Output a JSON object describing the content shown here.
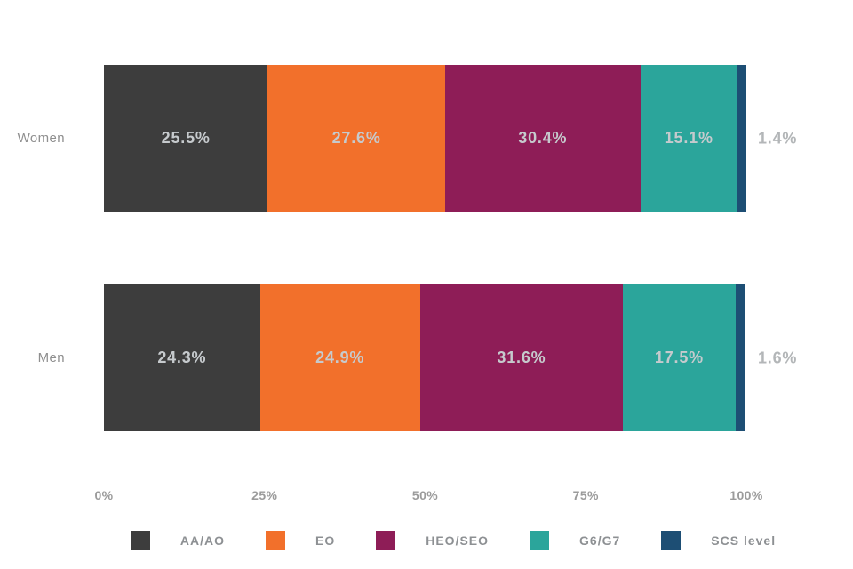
{
  "chart_data": {
    "type": "bar",
    "variant": "horizontal-stacked",
    "title": "",
    "xlabel": "",
    "ylabel": "",
    "x_axis": {
      "ticks": [
        "0%",
        "25%",
        "50%",
        "75%",
        "100%"
      ],
      "tick_positions": [
        0,
        25,
        50,
        75,
        100
      ],
      "range": [
        0,
        100
      ],
      "grid": false
    },
    "legend": {
      "position": "bottom",
      "items": [
        {
          "label": "AA/AO",
          "color": "#3d3d3d"
        },
        {
          "label": "EO",
          "color": "#f2702b"
        },
        {
          "label": "HEO/SEO",
          "color": "#8e1d57"
        },
        {
          "label": "G6/G7",
          "color": "#2ba59b"
        },
        {
          "label": "SCS level",
          "color": "#1d4e74"
        }
      ]
    },
    "rows": [
      {
        "label": "Women",
        "segments": [
          {
            "series": "AA/AO",
            "value": 25.5,
            "label": "25.5%",
            "label_inside": true
          },
          {
            "series": "EO",
            "value": 27.6,
            "label": "27.6%",
            "label_inside": true
          },
          {
            "series": "HEO/SEO",
            "value": 30.4,
            "label": "30.4%",
            "label_inside": true
          },
          {
            "series": "G6/G7",
            "value": 15.1,
            "label": "15.1%",
            "label_inside": true
          },
          {
            "series": "SCS level",
            "value": 1.4,
            "label": "1.4%",
            "label_inside": false
          }
        ]
      },
      {
        "label": "Men",
        "segments": [
          {
            "series": "AA/AO",
            "value": 24.3,
            "label": "24.3%",
            "label_inside": true
          },
          {
            "series": "EO",
            "value": 24.9,
            "label": "24.9%",
            "label_inside": true
          },
          {
            "series": "HEO/SEO",
            "value": 31.6,
            "label": "31.6%",
            "label_inside": true
          },
          {
            "series": "G6/G7",
            "value": 17.5,
            "label": "17.5%",
            "label_inside": true
          },
          {
            "series": "SCS level",
            "value": 1.6,
            "label": "1.6%",
            "label_inside": false
          }
        ]
      }
    ],
    "colors": {
      "segment_label": "#c6cacd",
      "outside_label": "#b3b6b8",
      "row_label": "#8f8f8f",
      "tick_label": "#9b9b9b",
      "legend_label": "#8d9093",
      "background": "#ffffff"
    }
  }
}
